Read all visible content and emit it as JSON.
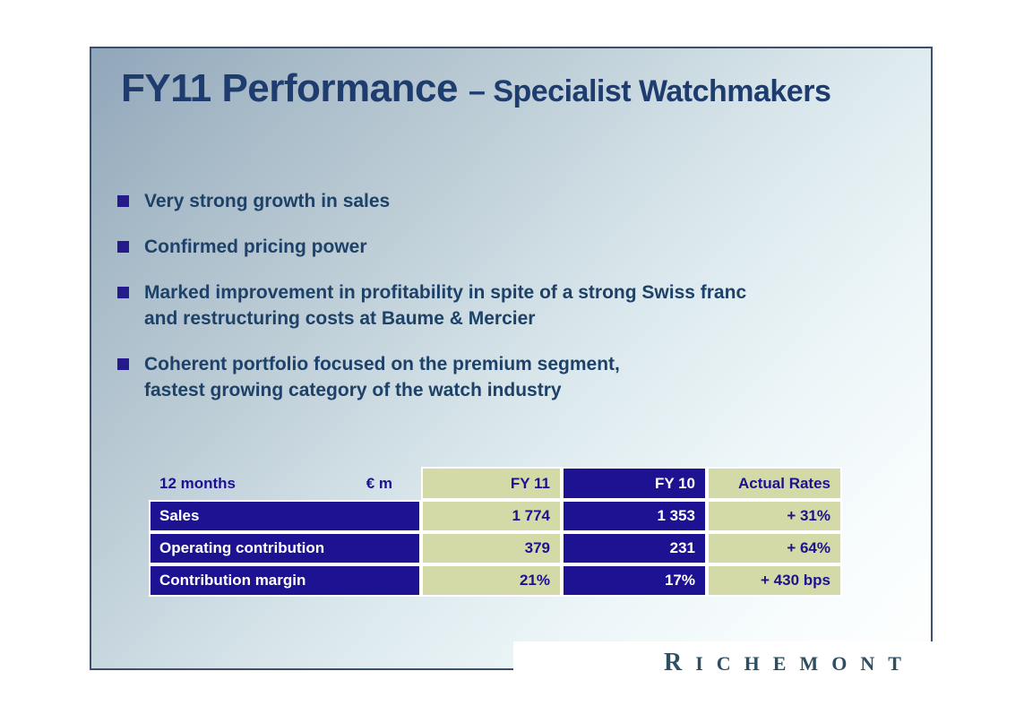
{
  "title": {
    "main": "FY11 Performance",
    "subtitle": "– Specialist Watchmakers"
  },
  "bullets": [
    {
      "lines": [
        "Very strong growth in sales"
      ]
    },
    {
      "lines": [
        "Confirmed pricing power"
      ]
    },
    {
      "lines": [
        "Marked improvement in profitability in spite of a strong Swiss franc",
        "and restructuring costs at Baume & Mercier"
      ]
    },
    {
      "lines": [
        "Coherent portfolio focused on the premium segment,",
        "fastest growing category of the watch industry"
      ]
    }
  ],
  "table": {
    "header": {
      "period": "12 months",
      "unit": "€ m",
      "col_fy11": "FY 11",
      "col_fy10": "FY 10",
      "col_rates": "Actual Rates"
    },
    "rows": [
      {
        "label": "Sales",
        "fy11": "1 774",
        "fy10": "1 353",
        "rate": "+ 31%"
      },
      {
        "label": "Operating contribution",
        "fy11": "379",
        "fy10": "231",
        "rate": "+ 64%"
      },
      {
        "label": "Contribution margin",
        "fy11": "21%",
        "fy10": "17%",
        "rate": "+ 430 bps"
      }
    ]
  },
  "logo": {
    "initial": "R",
    "rest": "ICHEMONT"
  },
  "colors": {
    "title_navy": "#1e3c6e",
    "bullet_text_navy": "#1d4168",
    "bullet_square_indigo": "#241a8c",
    "table_navy": "#1c1292",
    "table_khaki": "#d4d9a8",
    "table_text_on_navy": "#ffffff",
    "table_text_indigo": "#1c128f",
    "slide_border": "#3e5068",
    "logo_color": "#2d4f63",
    "gradient_start": "#90a6ba",
    "gradient_end": "#ffffff"
  }
}
